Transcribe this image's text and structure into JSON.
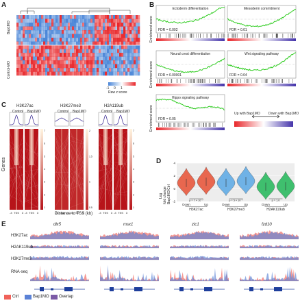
{
  "panels": {
    "A": {
      "letter": "A",
      "rows": [
        "Bap1MO",
        "Control-MO"
      ],
      "colorbar_ticks": [
        "-1",
        "0",
        "1"
      ],
      "colorbar_label": "Raw z score"
    },
    "B": {
      "letter": "B",
      "y_label": "Enrichment score",
      "gsea": [
        {
          "title": "Ectoderm differentiation",
          "fdr": "FDR = 0.002"
        },
        {
          "title": "Mesoderm commitment",
          "fdr": "FDR = 0.01"
        },
        {
          "title": "Neural crest differentiation",
          "fdr": "FDR = 0.00001"
        },
        {
          "title": "Wnt signaling pathway",
          "fdr": "FDR = 0.04"
        },
        {
          "title": "Hippo signaling pathway",
          "fdr": "FDR = 0.05"
        }
      ],
      "legend_left": "Up with Bap1MO",
      "legend_right": "Down with Bap1MO"
    },
    "C": {
      "letter": "C",
      "marks": [
        "H3K27ac",
        "H3K27me3",
        "H2A119ub"
      ],
      "conditions": [
        "Control",
        "Bap1MO"
      ],
      "y_label": "Genes",
      "x_label": "Distance to TSS (kb)",
      "tss_label": "TSS",
      "tick_left": "-3",
      "tick_right": "3",
      "scale_ticks": [
        [
          "7",
          "6",
          "5",
          "4",
          "3",
          "2",
          "1"
        ],
        [
          "2",
          "1.5",
          "1",
          "0.5"
        ],
        [
          "7",
          "6",
          "5",
          "4",
          "3",
          "2",
          "1"
        ]
      ]
    },
    "D": {
      "letter": "D",
      "y_label_line1": "Log",
      "y_label_line2": "fold change",
      "y_label_line3": "Bap1MO/Ctrl",
      "y_ticks": [
        "4",
        "2",
        "0",
        "-2"
      ],
      "groups": [
        "H3K27ac",
        "H3K27me3",
        "H2AK119ub"
      ],
      "categories": [
        "Down",
        "Up",
        "Down",
        "Up",
        "Down",
        "Up"
      ],
      "pvalues": [
        "p = 7 × 10⁻⁷",
        "p = 5 × 10⁻⁷",
        "p = 1.0"
      ],
      "colors": [
        "#e8674f",
        "#6fb2e6",
        "#3fbf6e"
      ]
    },
    "E": {
      "letter": "E",
      "genes": [
        "dlx5",
        "msx1",
        "zic1",
        "fzd10"
      ],
      "tracks": [
        "H3K27ac",
        "H2AK119ub",
        "H3K27me3",
        "RNA-seq"
      ],
      "legend": [
        {
          "label": "Ctrl",
          "color": "#f0625a"
        },
        {
          "label": "Bap1MO",
          "color": "#5b82d6"
        },
        {
          "label": "Overlap",
          "color": "#7b5aa6"
        }
      ]
    }
  },
  "colors": {
    "heat_red": "#e8262a",
    "heat_blue": "#4a86d8",
    "gsea_line": "#2ecc1f",
    "ctrl": "#f0625a",
    "bap1": "#5b82d6",
    "overlap": "#7b5aa6"
  }
}
